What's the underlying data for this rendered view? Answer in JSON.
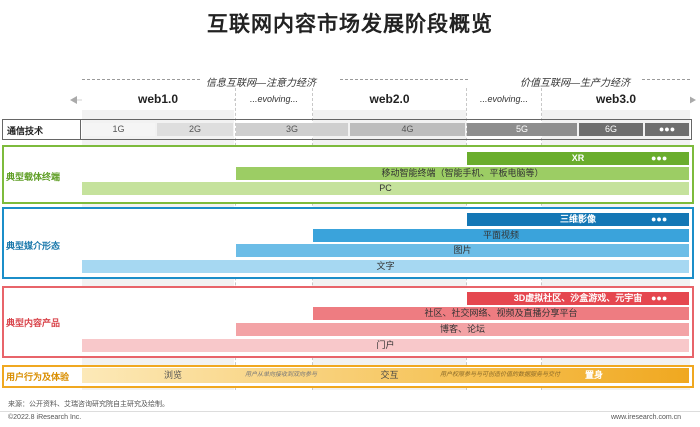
{
  "title": "互联网内容市场发展阶段概览",
  "eras": [
    {
      "label": "信息互联网—注意力经济"
    },
    {
      "label": "价值互联网—生产力经济"
    }
  ],
  "columns": [
    "web1.0",
    "...evolving...",
    "web2.0",
    "...evolving...",
    "web3.0"
  ],
  "telecom": {
    "label": "通信技术",
    "cells": [
      "1G",
      "2G",
      "3G",
      "4G",
      "5G",
      "6G"
    ],
    "dots": "●●●"
  },
  "carrier": {
    "label": "典型载体终端",
    "bars": [
      "XR",
      "移动智能终端（智能手机、平板电脑等）",
      "PC"
    ],
    "dots": "●●●"
  },
  "media": {
    "label": "典型媒介形态",
    "bars": [
      "三维影像",
      "平面视频",
      "图片",
      "文字"
    ],
    "dots": "●●●"
  },
  "content": {
    "label": "典型内容产品",
    "bars": [
      "3D虚拟社区、沙盒游戏、元宇宙",
      "社区、社交网络、视频及直播分享平台",
      "博客、论坛",
      "门户"
    ],
    "dots": "●●●"
  },
  "behavior": {
    "label": "用户行为及体验",
    "segments": [
      "浏览",
      "用户从单向接收到双向参与",
      "交互",
      "用户权限参与与可创造价值的数据服务与交付",
      "置身"
    ]
  },
  "colors": {
    "telecom": "#808080",
    "carrier": "#7dbb3c",
    "media": "#1b8ec9",
    "content": "#e8646a",
    "behavior": "#f0a820"
  },
  "footer": {
    "source": "来源：公开资料、艾瑞咨询研究院自主研究及绘制。",
    "copyright": "©2022.8 iResearch Inc.",
    "site": "www.iresearch.com.cn"
  }
}
